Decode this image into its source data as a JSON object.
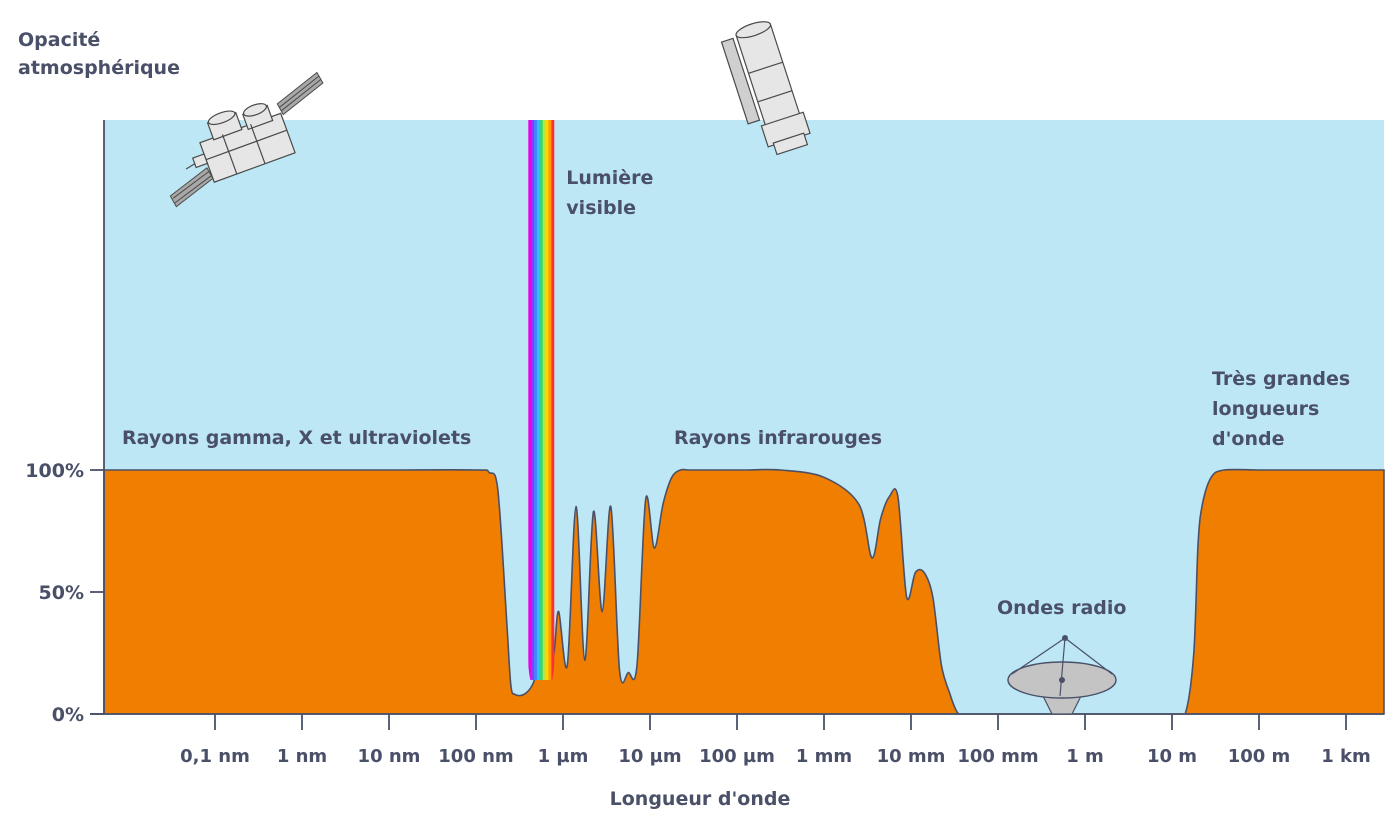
{
  "chart_data": {
    "type": "area",
    "ylabel_lines": [
      "Opacité",
      "atmosphérique"
    ],
    "xlabel": "Longueur d'onde",
    "yticks": [
      "100%",
      "50%",
      "0%"
    ],
    "ytick_values": [
      100,
      50,
      0
    ],
    "ylim": [
      0,
      100
    ],
    "x_scale": "log",
    "xtick_labels": [
      "0,1 nm",
      "1 nm",
      "10 nm",
      "100 nm",
      "1 µm",
      "10 µm",
      "100 µm",
      "1 mm",
      "10 mm",
      "100 mm",
      "1 m",
      "10 m",
      "100 m",
      "1 km"
    ],
    "xtick_log10_m": [
      -10,
      -9,
      -8,
      -7,
      -6,
      -5,
      -4,
      -3,
      -2,
      -1,
      0,
      1,
      2,
      3
    ],
    "series": [
      {
        "x_log10_m": [
          -12.2,
          -11,
          -10,
          -9,
          -8,
          -7,
          -6.85,
          -6.75,
          -6.65,
          -6.6,
          -6.55,
          -6.45,
          -6.35,
          -6.25,
          -6.2,
          -6.15,
          -6.1,
          -6.05,
          -5.95,
          -5.85,
          -5.75,
          -5.65,
          -5.55,
          -5.45,
          -5.35,
          -5.25,
          -5.15,
          -5.05,
          -4.95,
          -4.85,
          -4.75,
          -4.65,
          -4.55,
          -4.45,
          -4.35,
          -4.25,
          -4.1,
          -3.9,
          -3.5,
          -3.0,
          -2.6,
          -2.45,
          -2.35,
          -2.25,
          -2.15,
          -2.05,
          -1.95,
          -1.85,
          -1.75,
          -1.65,
          -1.55,
          -1.5,
          -1.45,
          -1.35,
          -1.25,
          -1.15,
          -0.5,
          0,
          0.5,
          1.0,
          1.15,
          1.25,
          1.3,
          1.35,
          1.45,
          1.6,
          2,
          2.5,
          3,
          3.5
        ],
        "values": [
          100,
          100,
          100,
          100,
          100,
          100,
          99,
          92,
          40,
          12,
          8,
          8,
          12,
          22,
          15,
          18,
          26,
          42,
          20,
          85,
          22,
          83,
          42,
          85,
          18,
          17,
          20,
          88,
          68,
          86,
          97,
          100,
          100,
          100,
          100,
          100,
          100,
          100,
          100,
          97,
          86,
          64,
          80,
          89,
          89,
          48,
          58,
          58,
          48,
          20,
          8,
          3,
          0,
          0,
          0,
          0,
          0,
          0,
          0,
          0,
          0,
          25,
          70,
          86,
          97,
          100,
          100,
          100,
          100,
          100
        ]
      }
    ],
    "visible_band": {
      "label_lines": [
        "Lumière",
        "visible"
      ],
      "from_log10_m": -6.4,
      "to_log10_m": -6.1
    },
    "annotations": [
      {
        "lines": [
          "Rayons gamma, X et ultraviolets"
        ]
      },
      {
        "lines": [
          "Rayons infrarouges"
        ]
      },
      {
        "lines": [
          "Ondes radio"
        ]
      },
      {
        "lines": [
          "Très grandes",
          "longueurs",
          "d'onde"
        ]
      }
    ],
    "colors": {
      "sky": "#bde7f5",
      "opaque": "#f07e00",
      "axis": "#4a5068",
      "text": "#4a5068",
      "rainbow": [
        "#e600e6",
        "#8040ff",
        "#4a7fff",
        "#30c0ff",
        "#33d67a",
        "#b9e640",
        "#ffd400",
        "#ff9a00",
        "#ff3030"
      ]
    },
    "icons": [
      "satellite-icon",
      "space-telescope-icon",
      "radio-dish-icon"
    ]
  }
}
